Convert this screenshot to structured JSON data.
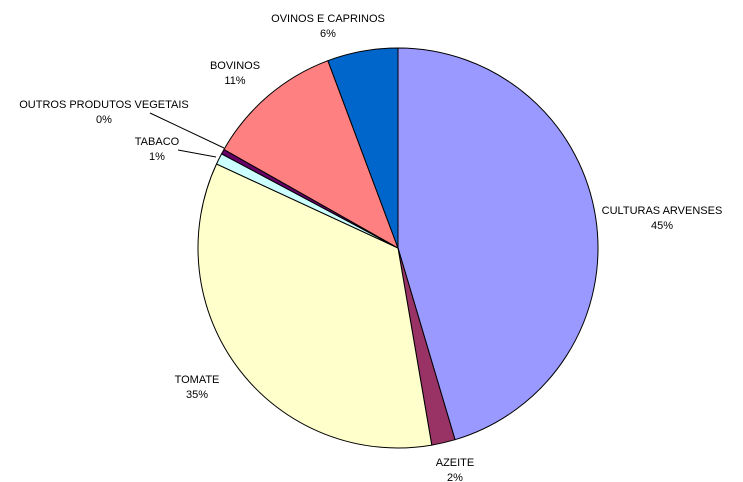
{
  "chart_data": {
    "type": "pie",
    "categories": [
      "CULTURAS ARVENSES",
      "AZEITE",
      "TOMATE",
      "TABACO",
      "OUTROS PRODUTOS VEGETAIS",
      "BOVINOS",
      "OVINOS E CAPRINOS"
    ],
    "values": [
      45.4,
      1.9,
      34.6,
      0.9,
      0.4,
      11.1,
      5.7
    ],
    "value_labels": [
      "45%",
      "2%",
      "35%",
      "1%",
      "0%",
      "11%",
      "6%"
    ],
    "colors": [
      "#9999ff",
      "#993366",
      "#ffffcc",
      "#ccffff",
      "#660066",
      "#ff8080",
      "#0066cc"
    ]
  }
}
